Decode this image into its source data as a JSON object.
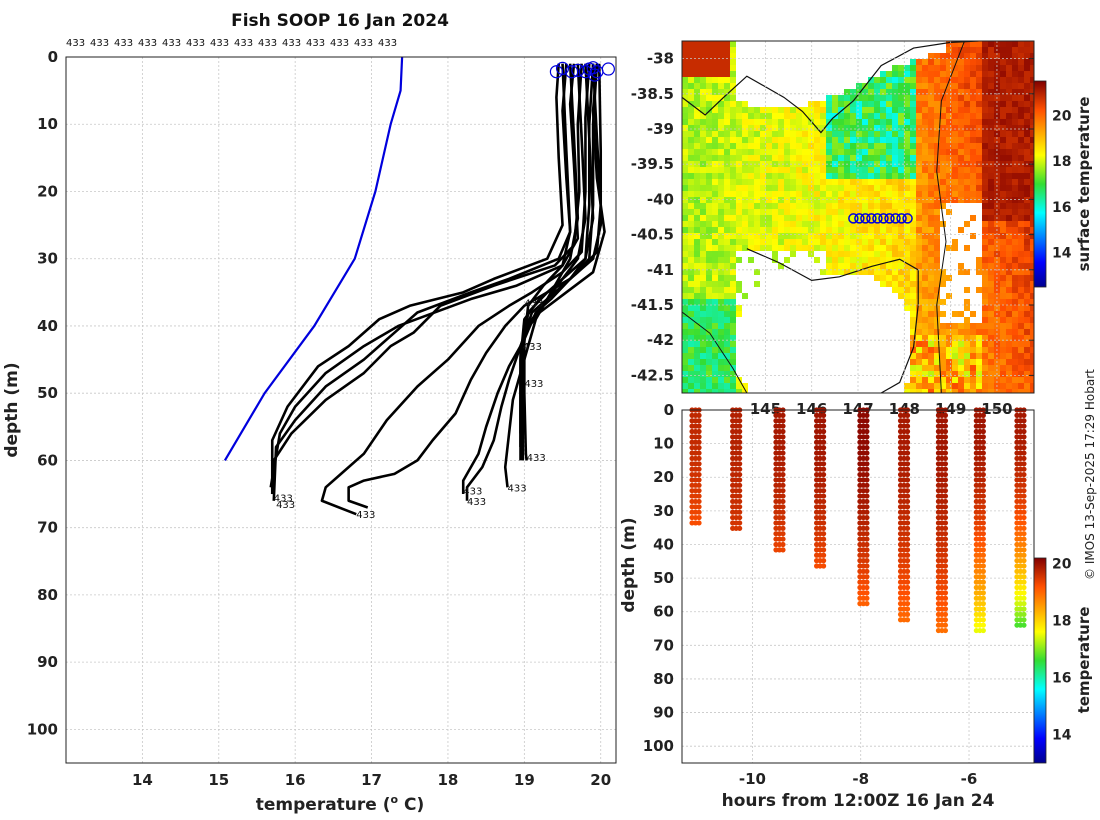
{
  "title": "Fish SOOP 16 Jan 2024",
  "credit": "© IMOS 13-Sep-2025 17:29 Hobart",
  "profile_id_label": "433",
  "colors": {
    "profile": "#000000",
    "climatology": "#0000dd",
    "marker": "#0000dd"
  },
  "chart_data": [
    {
      "name": "profiles",
      "type": "line",
      "xlabel": "temperature (o C)",
      "xlabel_parts": [
        "temperature (",
        "o",
        " C)"
      ],
      "ylabel": "depth (m)",
      "xlim": [
        13,
        20.2
      ],
      "ylim": [
        105,
        0
      ],
      "xticks": [
        "14",
        "15",
        "16",
        "17",
        "18",
        "19",
        "20"
      ],
      "yticks": [
        "0",
        "10",
        "20",
        "30",
        "40",
        "50",
        "60",
        "70",
        "80",
        "90",
        "100"
      ],
      "top_labels": [
        "433",
        "433",
        "433",
        "433",
        "433",
        "433",
        "433",
        "433",
        "433",
        "433",
        "433",
        "433",
        "433",
        "433"
      ],
      "reference": {
        "name": "climatology",
        "points": [
          [
            17.4,
            0
          ],
          [
            17.38,
            5
          ],
          [
            17.25,
            10
          ],
          [
            17.05,
            20
          ],
          [
            16.78,
            30
          ],
          [
            16.25,
            40
          ],
          [
            15.6,
            50
          ],
          [
            15.08,
            60
          ]
        ]
      },
      "series": [
        {
          "name": "p1",
          "points": [
            [
              19.45,
              1
            ],
            [
              19.42,
              6
            ],
            [
              19.45,
              15
            ],
            [
              19.5,
              25
            ],
            [
              19.3,
              30
            ],
            [
              18.6,
              33
            ],
            [
              18.2,
              35
            ],
            [
              17.5,
              37
            ],
            [
              17.1,
              39
            ],
            [
              16.7,
              43
            ],
            [
              16.3,
              46
            ],
            [
              15.9,
              52
            ],
            [
              15.7,
              57
            ],
            [
              15.7,
              65
            ]
          ]
        },
        {
          "name": "p2",
          "points": [
            [
              19.55,
              1
            ],
            [
              19.5,
              8
            ],
            [
              19.55,
              18
            ],
            [
              19.6,
              26
            ],
            [
              19.45,
              30
            ],
            [
              18.8,
              33
            ],
            [
              18.3,
              35
            ],
            [
              17.6,
              38
            ],
            [
              17.3,
              41
            ],
            [
              16.9,
              45
            ],
            [
              16.4,
              49
            ],
            [
              16.0,
              54
            ],
            [
              15.75,
              58
            ],
            [
              15.72,
              66
            ]
          ]
        },
        {
          "name": "p3",
          "points": [
            [
              19.65,
              1
            ],
            [
              19.6,
              7
            ],
            [
              19.65,
              16
            ],
            [
              19.7,
              27
            ],
            [
              19.5,
              31
            ],
            [
              18.9,
              34
            ],
            [
              18.3,
              36
            ],
            [
              17.35,
              40
            ],
            [
              16.9,
              43
            ],
            [
              16.4,
              47
            ],
            [
              16.0,
              52
            ],
            [
              15.8,
              56
            ],
            [
              15.68,
              64
            ]
          ]
        },
        {
          "name": "p4",
          "points": [
            [
              19.75,
              1
            ],
            [
              19.7,
              10
            ],
            [
              19.72,
              20
            ],
            [
              19.65,
              28
            ],
            [
              19.4,
              31
            ],
            [
              18.6,
              34
            ],
            [
              17.9,
              37
            ],
            [
              17.55,
              41
            ],
            [
              17.25,
              43
            ],
            [
              16.9,
              47
            ],
            [
              16.4,
              51
            ],
            [
              15.95,
              56
            ],
            [
              15.72,
              60
            ],
            [
              15.7,
              65
            ]
          ]
        },
        {
          "name": "p5",
          "points": [
            [
              19.85,
              1
            ],
            [
              19.8,
              9
            ],
            [
              19.8,
              20
            ],
            [
              19.75,
              29
            ],
            [
              19.5,
              32
            ],
            [
              19.1,
              35
            ],
            [
              18.8,
              37
            ],
            [
              18.4,
              40
            ],
            [
              18.0,
              45
            ],
            [
              17.6,
              49
            ],
            [
              17.2,
              54
            ],
            [
              16.9,
              59
            ],
            [
              16.6,
              62
            ],
            [
              16.4,
              64
            ],
            [
              16.35,
              66
            ],
            [
              16.8,
              68
            ]
          ]
        },
        {
          "name": "p6",
          "points": [
            [
              19.9,
              1
            ],
            [
              19.85,
              10
            ],
            [
              19.85,
              22
            ],
            [
              19.8,
              30
            ],
            [
              19.6,
              33
            ],
            [
              19.3,
              35
            ],
            [
              19.0,
              37
            ],
            [
              18.75,
              40
            ],
            [
              18.5,
              44
            ],
            [
              18.3,
              48
            ],
            [
              18.1,
              53
            ],
            [
              17.8,
              57
            ],
            [
              17.6,
              60
            ],
            [
              17.3,
              62
            ],
            [
              16.9,
              63
            ],
            [
              16.7,
              64
            ],
            [
              16.7,
              66
            ],
            [
              16.95,
              67
            ]
          ]
        },
        {
          "name": "p7",
          "points": [
            [
              19.95,
              1
            ],
            [
              19.9,
              10
            ],
            [
              19.9,
              22
            ],
            [
              19.85,
              30
            ],
            [
              19.6,
              33
            ],
            [
              19.35,
              36
            ],
            [
              19.15,
              38
            ],
            [
              19.0,
              42
            ],
            [
              18.8,
              46
            ],
            [
              18.65,
              50
            ],
            [
              18.5,
              55
            ],
            [
              18.4,
              59
            ],
            [
              18.2,
              63
            ],
            [
              18.2,
              65
            ]
          ]
        },
        {
          "name": "p8",
          "points": [
            [
              19.7,
              1
            ],
            [
              19.75,
              12
            ],
            [
              19.8,
              24
            ],
            [
              19.7,
              30
            ],
            [
              19.5,
              33
            ],
            [
              19.3,
              36
            ],
            [
              19.1,
              39
            ],
            [
              18.95,
              43
            ],
            [
              18.8,
              48
            ],
            [
              18.7,
              52
            ],
            [
              18.6,
              57
            ],
            [
              18.45,
              61
            ],
            [
              18.25,
              64
            ],
            [
              18.25,
              66
            ]
          ]
        },
        {
          "name": "p9",
          "points": [
            [
              19.6,
              1
            ],
            [
              19.65,
              12
            ],
            [
              19.7,
              24
            ],
            [
              19.6,
              30
            ],
            [
              19.45,
              33
            ],
            [
              19.3,
              36
            ],
            [
              19.15,
              39
            ],
            [
              19.05,
              43
            ],
            [
              18.95,
              47
            ],
            [
              18.85,
              51
            ],
            [
              18.8,
              56
            ],
            [
              18.75,
              61
            ],
            [
              18.78,
              64
            ]
          ]
        },
        {
          "name": "p10",
          "points": [
            [
              19.5,
              1
            ],
            [
              19.55,
              14
            ],
            [
              19.6,
              26
            ],
            [
              19.5,
              31
            ],
            [
              19.25,
              34
            ],
            [
              19.05,
              37
            ],
            [
              19.0,
              42
            ],
            [
              19.0,
              50
            ],
            [
              19.02,
              59
            ],
            [
              19.03,
              60
            ]
          ]
        },
        {
          "name": "p11",
          "points": [
            [
              19.8,
              1
            ],
            [
              19.85,
              12
            ],
            [
              19.9,
              24
            ],
            [
              19.8,
              30
            ],
            [
              19.5,
              33
            ],
            [
              19.2,
              36
            ],
            [
              19.0,
              39
            ],
            [
              18.95,
              45
            ],
            [
              18.95,
              52
            ],
            [
              18.95,
              60
            ]
          ]
        },
        {
          "name": "p12",
          "points": [
            [
              19.9,
              1
            ],
            [
              19.95,
              12
            ],
            [
              20.0,
              22
            ],
            [
              19.95,
              29
            ],
            [
              19.7,
              32
            ],
            [
              19.4,
              35
            ],
            [
              19.1,
              38
            ],
            [
              18.95,
              43
            ],
            [
              18.95,
              50
            ],
            [
              18.95,
              58
            ]
          ]
        },
        {
          "name": "p13",
          "points": [
            [
              19.98,
              1
            ],
            [
              20.0,
              14
            ],
            [
              20.0,
              25
            ],
            [
              19.9,
              30
            ],
            [
              19.6,
              33
            ],
            [
              19.3,
              35
            ],
            [
              19.05,
              38
            ],
            [
              18.98,
              44
            ],
            [
              18.98,
              52
            ],
            [
              18.98,
              60
            ]
          ]
        },
        {
          "name": "p14",
          "points": [
            [
              19.95,
              1
            ],
            [
              19.9,
              8
            ],
            [
              19.95,
              18
            ],
            [
              20.05,
              26
            ],
            [
              19.9,
              32
            ],
            [
              19.55,
              35
            ],
            [
              19.2,
              38
            ],
            [
              19.0,
              41
            ],
            [
              18.95,
              47
            ],
            [
              18.95,
              56
            ]
          ]
        }
      ],
      "end_labels": [
        [
          15.72,
          65.5,
          "433"
        ],
        [
          15.75,
          66.5,
          "433"
        ],
        [
          16.8,
          68,
          "433"
        ],
        [
          18.2,
          64.5,
          "433"
        ],
        [
          18.25,
          66,
          "433"
        ],
        [
          18.78,
          64,
          "433"
        ],
        [
          19.03,
          59.5,
          "433"
        ],
        [
          19.0,
          48.5,
          "433"
        ],
        [
          18.98,
          43,
          "433"
        ],
        [
          19.0,
          36.5,
          "433"
        ]
      ],
      "markers": [
        [
          19.42,
          1
        ],
        [
          19.5,
          0.5
        ],
        [
          19.62,
          1
        ],
        [
          19.7,
          0.8
        ],
        [
          19.8,
          1
        ],
        [
          19.85,
          0.6
        ],
        [
          19.9,
          0.4
        ],
        [
          19.95,
          1
        ],
        [
          20.1,
          0.6
        ],
        [
          19.92,
          1.5
        ]
      ]
    },
    {
      "name": "surface_map",
      "type": "heatmap",
      "xlim": [
        143.2,
        150.8
      ],
      "ylim": [
        -42.75,
        -37.75
      ],
      "yticks": [
        "-38",
        "-38.5",
        "-39",
        "-39.5",
        "-40",
        "-40.5",
        "-41",
        "-41.5",
        "-42",
        "-42.5"
      ],
      "xticks": [
        "145",
        "146",
        "147",
        "148",
        "149",
        "150"
      ],
      "colorbar_label": "surface temperature",
      "colorbar_ticks": [
        "14",
        "16",
        "18",
        "20"
      ],
      "colorbar_range": [
        12.5,
        21.5
      ],
      "track_points": [
        [
          146.9,
          -40.27
        ],
        [
          147.03,
          -40.27
        ],
        [
          147.16,
          -40.27
        ],
        [
          147.29,
          -40.27
        ],
        [
          147.42,
          -40.27
        ],
        [
          147.55,
          -40.27
        ],
        [
          147.68,
          -40.27
        ],
        [
          147.81,
          -40.27
        ],
        [
          147.94,
          -40.27
        ],
        [
          148.07,
          -40.27
        ]
      ]
    },
    {
      "name": "time_depth",
      "type": "scatter",
      "xlabel": "hours from 12:00Z 16 Jan 24",
      "ylabel": "depth (m)",
      "xlim": [
        -11.3,
        -4.8
      ],
      "ylim": [
        105,
        0
      ],
      "xticks": [
        "-10",
        "-8",
        "-6"
      ],
      "yticks": [
        "0",
        "10",
        "20",
        "30",
        "40",
        "50",
        "60",
        "70",
        "80",
        "90",
        "100"
      ],
      "colorbar_label": "temperature",
      "colorbar_ticks": [
        "14",
        "16",
        "18",
        "20"
      ],
      "colorbar_range": [
        13,
        20.2
      ],
      "casts": [
        {
          "hour": -11.05,
          "max_depth": 35,
          "t_top": 19.7,
          "t_bottom": 19.2
        },
        {
          "hour": -10.3,
          "max_depth": 36,
          "t_top": 19.8,
          "t_bottom": 19.5
        },
        {
          "hour": -9.5,
          "max_depth": 43,
          "t_top": 19.9,
          "t_bottom": 19.3
        },
        {
          "hour": -8.75,
          "max_depth": 48,
          "t_top": 19.95,
          "t_bottom": 19.2
        },
        {
          "hour": -7.95,
          "max_depth": 59,
          "t_top": 20.1,
          "t_bottom": 19.0
        },
        {
          "hour": -7.2,
          "max_depth": 64,
          "t_top": 19.9,
          "t_bottom": 18.9
        },
        {
          "hour": -6.5,
          "max_depth": 66,
          "t_top": 19.95,
          "t_bottom": 18.9
        },
        {
          "hour": -5.8,
          "max_depth": 67,
          "t_top": 19.95,
          "t_bottom": 17.4
        },
        {
          "hour": -5.05,
          "max_depth": 65,
          "t_top": 19.9,
          "t_bottom": 16.6
        }
      ]
    }
  ]
}
